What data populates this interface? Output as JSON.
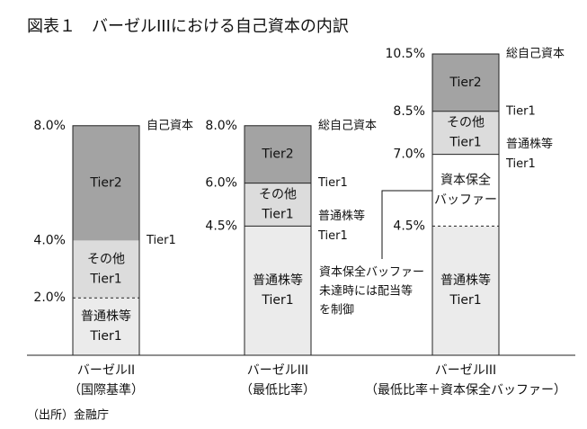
{
  "chart_data": {
    "type": "stacked-bar",
    "title": "図表１　バーゼルIIIにおける自己資本の内訳",
    "source": "（出所）金融庁",
    "annotation": [
      "資本保全バッファー",
      "未達時には配当等",
      "を制御"
    ],
    "ylim": [
      0,
      10.5
    ],
    "bars": [
      {
        "category": [
          "バーゼルII",
          "（国際基準）"
        ],
        "segments": [
          {
            "label": [
              "普通株等",
              "Tier1"
            ],
            "value": 2.0,
            "color": "#ebebeb"
          },
          {
            "label": [
              "その他",
              "Tier1"
            ],
            "value": 2.0,
            "color": "#dcdcdc",
            "divider": "dashed"
          },
          {
            "label": [
              "Tier2"
            ],
            "value": 4.0,
            "color": "#a3a3a3"
          }
        ],
        "ticks": [
          {
            "value": 2.0,
            "label": "2.0%"
          },
          {
            "value": 4.0,
            "label": "4.0%"
          },
          {
            "value": 8.0,
            "label": "8.0%"
          }
        ],
        "side_labels": [
          {
            "value": 8.0,
            "label": [
              "自己資本"
            ]
          },
          {
            "value": 4.0,
            "label": [
              "Tier1"
            ]
          }
        ]
      },
      {
        "category": [
          "バーゼルIII",
          "（最低比率）"
        ],
        "segments": [
          {
            "label": [
              "普通株等",
              "Tier1"
            ],
            "value": 4.5,
            "color": "#ebebeb"
          },
          {
            "label": [
              "その他",
              "Tier1"
            ],
            "value": 1.5,
            "color": "#dcdcdc",
            "divider": "solid"
          },
          {
            "label": [
              "Tier2"
            ],
            "value": 2.0,
            "color": "#a3a3a3",
            "divider": "solid"
          }
        ],
        "ticks": [
          {
            "value": 4.5,
            "label": "4.5%"
          },
          {
            "value": 6.0,
            "label": "6.0%"
          },
          {
            "value": 8.0,
            "label": "8.0%"
          }
        ],
        "side_labels": [
          {
            "value": 8.0,
            "label": [
              "総自己資本"
            ]
          },
          {
            "value": 6.0,
            "label": [
              "Tier1"
            ]
          },
          {
            "value": 4.5,
            "label": [
              "普通株等",
              "Tier1"
            ]
          }
        ]
      },
      {
        "category": [
          "バーゼルIII",
          "（最低比率＋資本保全バッファー）"
        ],
        "segments": [
          {
            "label": [
              "普通株等",
              "Tier1"
            ],
            "value": 4.5,
            "color": "#ebebeb"
          },
          {
            "label": [
              "資本保全",
              "バッファー"
            ],
            "value": 2.5,
            "color": "#ffffff",
            "divider": "dashed"
          },
          {
            "label": [
              "その他",
              "Tier1"
            ],
            "value": 1.5,
            "color": "#dcdcdc",
            "divider": "solid"
          },
          {
            "label": [
              "Tier2"
            ],
            "value": 2.0,
            "color": "#a3a3a3",
            "divider": "solid"
          }
        ],
        "ticks": [
          {
            "value": 4.5,
            "label": "4.5%"
          },
          {
            "value": 7.0,
            "label": "7.0%"
          },
          {
            "value": 8.5,
            "label": "8.5%"
          },
          {
            "value": 10.5,
            "label": "10.5%"
          }
        ],
        "side_labels": [
          {
            "value": 10.5,
            "label": [
              "総自己資本"
            ]
          },
          {
            "value": 8.5,
            "label": [
              "Tier1"
            ]
          },
          {
            "value": 7.0,
            "label": [
              "普通株等",
              "Tier1"
            ]
          }
        ]
      }
    ]
  }
}
